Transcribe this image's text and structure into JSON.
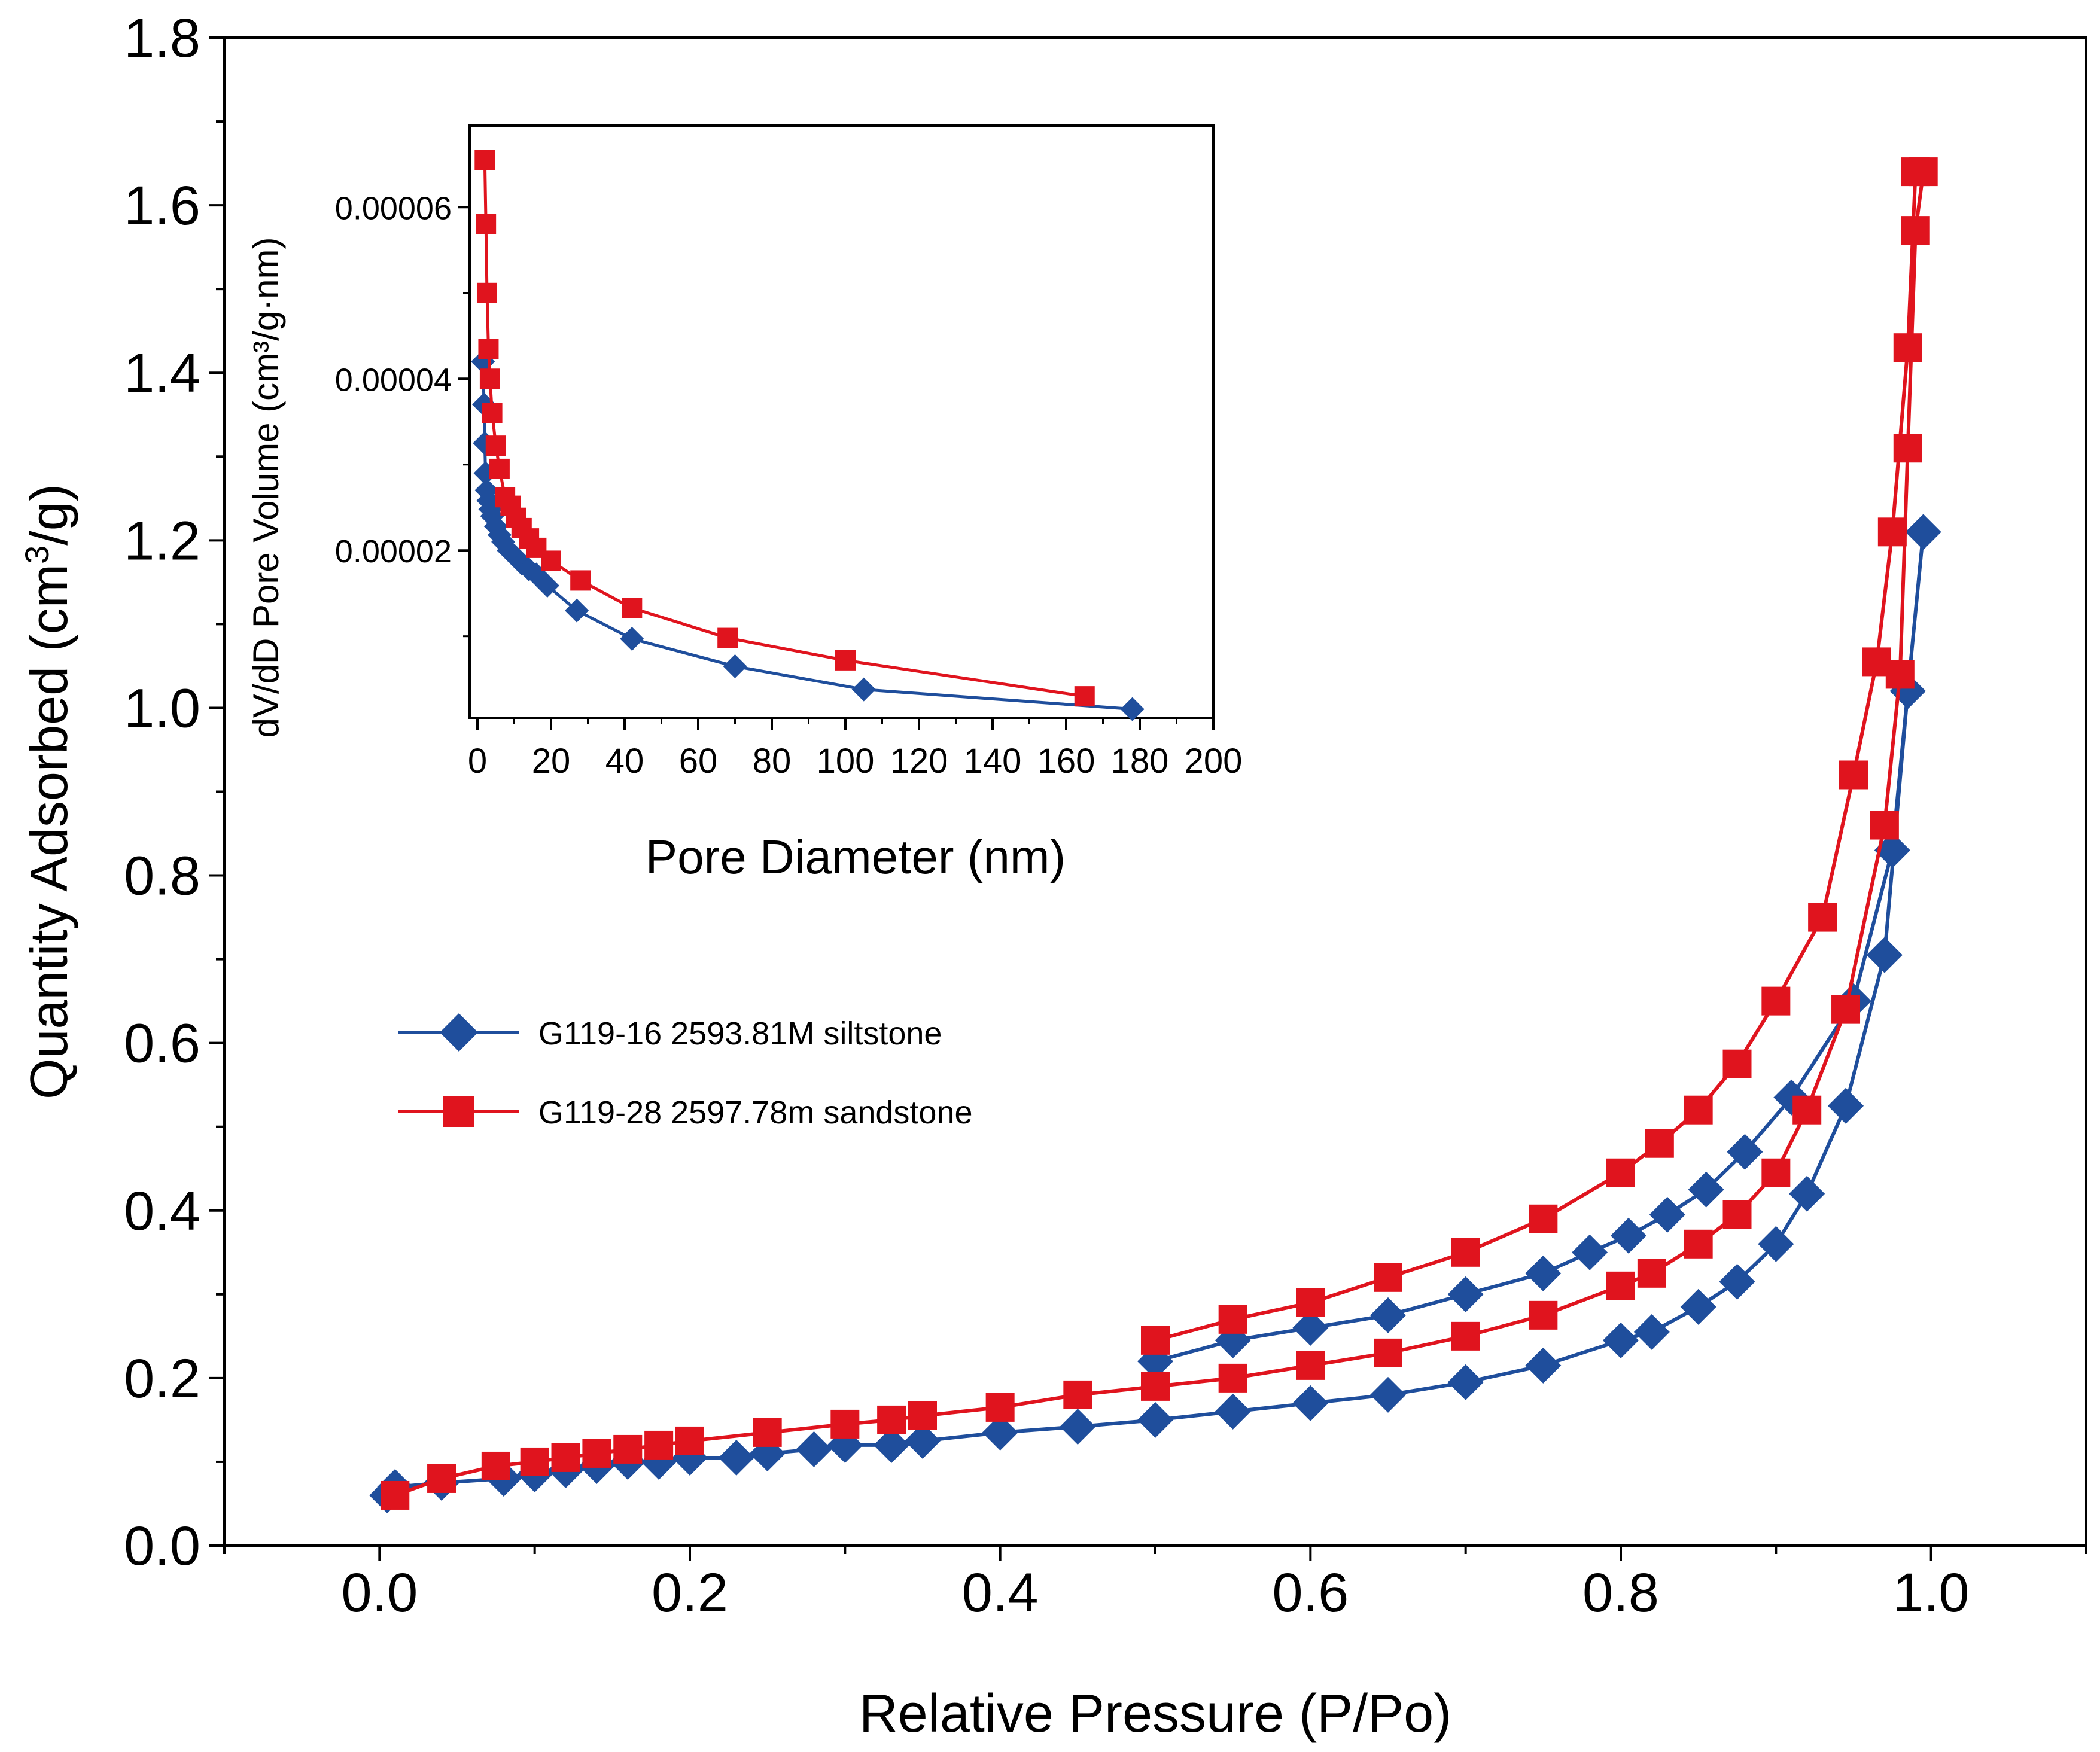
{
  "colors": {
    "siltstone": "#1f4e9c",
    "sandstone": "#e0141e",
    "axis": "#000000"
  },
  "legend": {
    "items": [
      {
        "label": "G119-16 2593.81M siltstone",
        "marker": "diamond"
      },
      {
        "label": "G119-28 2597.78m sandstone",
        "marker": "square"
      }
    ]
  },
  "chart_data": [
    {
      "type": "scatter",
      "xlabel": "Relative Pressure (P/Po)",
      "ylabel_parts": [
        "Quantity Adsorbed (cm",
        "3",
        "/g)"
      ],
      "xlim": [
        -0.1,
        1.1
      ],
      "ylim": [
        0.0,
        1.8
      ],
      "x_ticks": [
        0.0,
        0.2,
        0.4,
        0.6,
        0.8,
        1.0
      ],
      "x_tick_labels": [
        "0.0",
        "0.2",
        "0.4",
        "0.6",
        "0.8",
        "1.0"
      ],
      "y_ticks": [
        0.0,
        0.2,
        0.4,
        0.6,
        0.8,
        1.0,
        1.2,
        1.4,
        1.6,
        1.8
      ],
      "y_tick_labels": [
        "0.0",
        "0.2",
        "0.4",
        "0.6",
        "0.8",
        "1.0",
        "1.2",
        "1.4",
        "1.6",
        "1.8"
      ],
      "series": [
        {
          "name": "G119-16 2593.81M siltstone",
          "marker": "diamond",
          "x": [
            0.005,
            0.01,
            0.04,
            0.08,
            0.1,
            0.12,
            0.14,
            0.16,
            0.18,
            0.2,
            0.23,
            0.25,
            0.28,
            0.3,
            0.33,
            0.35,
            0.4,
            0.45,
            0.5,
            0.55,
            0.6,
            0.65,
            0.7,
            0.75,
            0.8,
            0.82,
            0.85,
            0.875,
            0.9,
            0.92,
            0.945,
            0.97,
            0.985,
            0.995,
            0.985,
            0.975,
            0.95,
            0.91,
            0.88,
            0.855,
            0.83,
            0.805,
            0.78,
            0.75,
            0.7,
            0.65,
            0.6,
            0.55,
            0.5
          ],
          "y": [
            0.06,
            0.07,
            0.075,
            0.08,
            0.085,
            0.09,
            0.095,
            0.1,
            0.1,
            0.105,
            0.105,
            0.11,
            0.115,
            0.12,
            0.12,
            0.125,
            0.135,
            0.142,
            0.15,
            0.16,
            0.17,
            0.18,
            0.195,
            0.215,
            0.245,
            0.255,
            0.285,
            0.315,
            0.36,
            0.42,
            0.525,
            0.705,
            1.02,
            1.21,
            1.02,
            0.83,
            0.65,
            0.535,
            0.47,
            0.425,
            0.395,
            0.37,
            0.35,
            0.325,
            0.3,
            0.275,
            0.26,
            0.245,
            0.22
          ]
        },
        {
          "name": "G119-28 2597.78m sandstone",
          "marker": "square",
          "x": [
            0.01,
            0.04,
            0.075,
            0.1,
            0.12,
            0.14,
            0.16,
            0.18,
            0.2,
            0.25,
            0.3,
            0.33,
            0.35,
            0.4,
            0.45,
            0.5,
            0.55,
            0.6,
            0.65,
            0.7,
            0.75,
            0.8,
            0.82,
            0.85,
            0.875,
            0.9,
            0.92,
            0.945,
            0.97,
            0.98,
            0.985,
            0.99,
            0.995,
            0.99,
            0.985,
            0.975,
            0.965,
            0.95,
            0.93,
            0.9,
            0.875,
            0.85,
            0.825,
            0.8,
            0.75,
            0.7,
            0.65,
            0.6,
            0.55,
            0.5
          ],
          "y": [
            0.06,
            0.08,
            0.095,
            0.1,
            0.105,
            0.11,
            0.115,
            0.12,
            0.125,
            0.135,
            0.145,
            0.15,
            0.155,
            0.165,
            0.18,
            0.19,
            0.2,
            0.215,
            0.23,
            0.25,
            0.275,
            0.31,
            0.325,
            0.36,
            0.395,
            0.445,
            0.52,
            0.64,
            0.86,
            1.04,
            1.31,
            1.57,
            1.64,
            1.64,
            1.43,
            1.21,
            1.055,
            0.92,
            0.75,
            0.65,
            0.575,
            0.52,
            0.48,
            0.445,
            0.39,
            0.35,
            0.32,
            0.29,
            0.27,
            0.245
          ]
        }
      ]
    },
    {
      "type": "line",
      "xlabel": "Pore Diameter (nm)",
      "ylabel": "dV/dD Pore Volume (cm³/g·nm)",
      "xlim": [
        0,
        200
      ],
      "ylim": [
        5e-07,
        6.95e-05
      ],
      "x_ticks": [
        0,
        20,
        40,
        60,
        80,
        100,
        120,
        140,
        160,
        180,
        200
      ],
      "x_tick_labels": [
        "0",
        "20",
        "40",
        "60",
        "80",
        "100",
        "120",
        "140",
        "160",
        "180",
        "200"
      ],
      "y_ticks": [
        2e-05,
        4e-05,
        6e-05
      ],
      "y_tick_labels": [
        "0.00002",
        "0.00004",
        "0.00006"
      ],
      "series": [
        {
          "name": "G119-16 2593.81M siltstone",
          "marker": "diamond",
          "x": [
            1.5,
            1.8,
            2.0,
            2.2,
            2.5,
            3.0,
            3.5,
            4.0,
            5.0,
            6.0,
            7.0,
            8.5,
            10.0,
            12.0,
            14.0,
            16.0,
            19.0,
            27.0,
            42.0,
            70.0,
            105.0,
            178.0
          ],
          "y": [
            4.2e-05,
            3.7e-05,
            3.25e-05,
            2.9e-05,
            2.7e-05,
            2.58e-05,
            2.48e-05,
            2.4e-05,
            2.28e-05,
            2.18e-05,
            2.1e-05,
            2e-05,
            1.94e-05,
            1.85e-05,
            1.78e-05,
            1.72e-05,
            1.59e-05,
            1.3e-05,
            9.7e-06,
            6.5e-06,
            3.8e-06,
            1.5e-06
          ]
        },
        {
          "name": "G119-28 2597.78m sandstone",
          "marker": "square",
          "x": [
            2.0,
            2.3,
            2.6,
            3.0,
            3.4,
            4.0,
            5.0,
            6.0,
            7.5,
            9.0,
            10.5,
            12.0,
            14.0,
            16.0,
            20.0,
            28.0,
            42.0,
            68.0,
            100.0,
            165.0
          ],
          "y": [
            6.55e-05,
            5.8e-05,
            5e-05,
            4.35e-05,
            4e-05,
            3.6e-05,
            3.22e-05,
            2.95e-05,
            2.62e-05,
            2.52e-05,
            2.38e-05,
            2.26e-05,
            2.14e-05,
            2.03e-05,
            1.88e-05,
            1.65e-05,
            1.33e-05,
            9.8e-06,
            7.2e-06,
            3e-06
          ]
        }
      ]
    }
  ]
}
